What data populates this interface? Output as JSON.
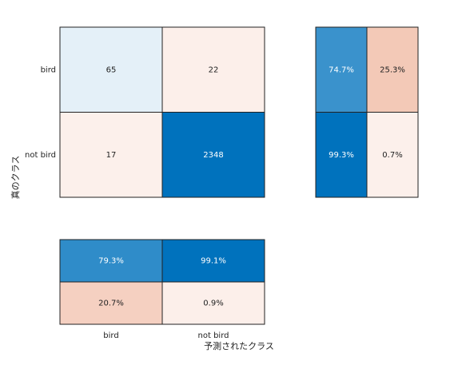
{
  "chart_data": {
    "type": "confusion",
    "categories": [
      "bird",
      "not bird"
    ],
    "xlabel": "予測されたクラス",
    "ylabel": "真のクラス",
    "correct_color": "#0072bd",
    "incorrect_color": "#d95319",
    "matrix": [
      [
        65,
        22
      ],
      [
        17,
        2348
      ]
    ],
    "row_summary": {
      "values": [
        [
          74.7,
          25.3
        ],
        [
          99.3,
          0.7
        ]
      ],
      "value_labels": [
        [
          "74.7%",
          "25.3%"
        ],
        [
          "99.3%",
          "0.7%"
        ]
      ]
    },
    "column_summary": {
      "values": [
        [
          79.3,
          99.1
        ],
        [
          20.7,
          0.9
        ]
      ],
      "value_labels": [
        [
          "79.3%",
          "99.1%"
        ],
        [
          "20.7%",
          "0.9%"
        ]
      ]
    }
  }
}
